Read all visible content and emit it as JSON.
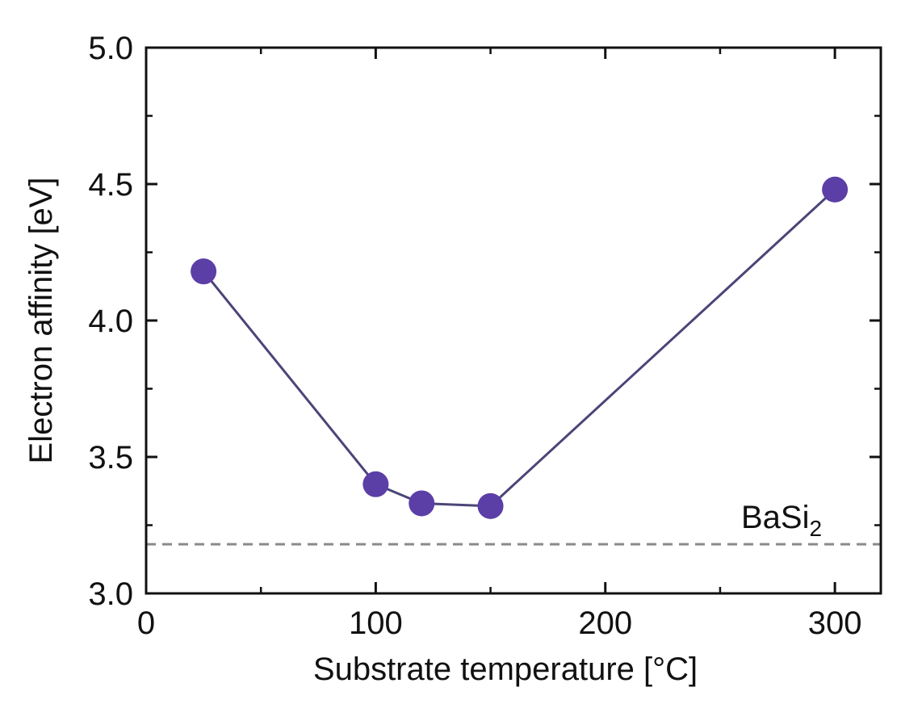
{
  "chart_data": {
    "type": "line",
    "xlabel": "Substrate temperature [°C]",
    "ylabel": "Electron affinity [eV]",
    "xlim": [
      0,
      320
    ],
    "ylim": [
      3.0,
      5.0
    ],
    "x_ticks": [
      0,
      100,
      200,
      300
    ],
    "x_minor_step": 50,
    "y_ticks": [
      3.0,
      3.5,
      4.0,
      4.5,
      5.0
    ],
    "y_minor_step": 0.25,
    "x_tick_labels": [
      "0",
      "100",
      "200",
      "300"
    ],
    "y_tick_labels": [
      "3.0",
      "3.5",
      "4.0",
      "4.5",
      "5.0"
    ],
    "grid": false,
    "series": [
      {
        "x": [
          25,
          100,
          120,
          150,
          300
        ],
        "y": [
          4.18,
          3.4,
          3.33,
          3.32,
          4.48
        ],
        "color": "#5b3ea6",
        "line_color": "#4a4578"
      }
    ],
    "reference_line": {
      "y": 3.18,
      "style": "dashed",
      "color": "#8a8a8a",
      "label": "BaSi",
      "label_subscript": "2"
    }
  }
}
